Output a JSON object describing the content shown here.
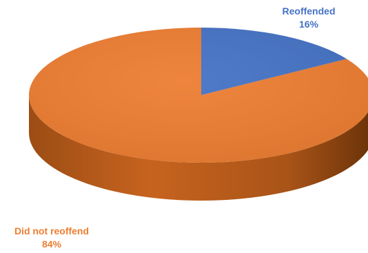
{
  "chart_data": {
    "type": "pie",
    "style": "3d",
    "title": "",
    "slices": [
      {
        "label": "Reoffended",
        "value": 16,
        "value_label": "16%",
        "color": "#4472C4"
      },
      {
        "label": "Did not reoffend",
        "value": 84,
        "value_label": "84%",
        "color": "#ED7D31"
      }
    ],
    "label_colors": {
      "Reoffended": "#4472C4",
      "Did not reoffend": "#ED7D31"
    },
    "legend": "none"
  }
}
